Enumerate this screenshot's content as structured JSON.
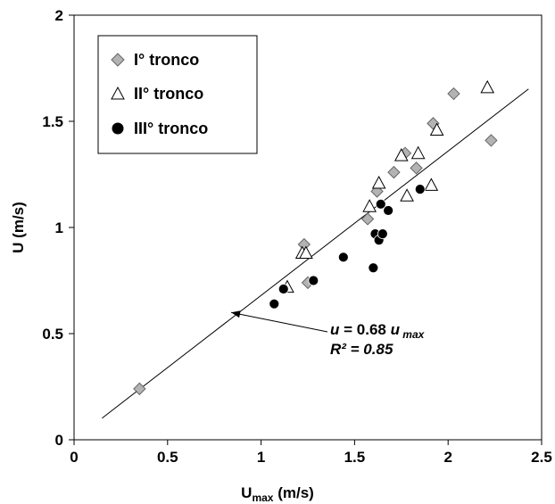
{
  "chart_data": {
    "type": "scatter",
    "xlabel_main": "U",
    "xlabel_sub": "max",
    "xlabel_unit": " (m/s)",
    "ylabel": "U (m/s)",
    "xlim": [
      0,
      2.5
    ],
    "ylim": [
      0,
      2
    ],
    "xticks": [
      "0",
      "0.5",
      "1",
      "1.5",
      "2",
      "2.5"
    ],
    "yticks": [
      "0",
      "0.5",
      "1",
      "1.5",
      "2"
    ],
    "grid": false,
    "legend_position": "top-left",
    "series": [
      {
        "name": "I° tronco",
        "marker": "diamond",
        "color": "#b3b3b3",
        "points": [
          [
            0.35,
            0.24
          ],
          [
            1.23,
            0.92
          ],
          [
            1.25,
            0.74
          ],
          [
            1.57,
            1.04
          ],
          [
            1.62,
            1.17
          ],
          [
            1.71,
            1.26
          ],
          [
            1.77,
            1.35
          ],
          [
            1.83,
            1.28
          ],
          [
            1.92,
            1.49
          ],
          [
            2.03,
            1.63
          ],
          [
            2.23,
            1.41
          ]
        ]
      },
      {
        "name": "II° tronco",
        "marker": "triangle",
        "color": "#ffffff",
        "points": [
          [
            1.14,
            0.72
          ],
          [
            1.22,
            0.88
          ],
          [
            1.24,
            0.88
          ],
          [
            1.58,
            1.1
          ],
          [
            1.63,
            1.21
          ],
          [
            1.75,
            1.34
          ],
          [
            1.78,
            1.15
          ],
          [
            1.84,
            1.35
          ],
          [
            1.91,
            1.2
          ],
          [
            1.94,
            1.46
          ],
          [
            2.21,
            1.66
          ]
        ]
      },
      {
        "name": "III° tronco",
        "marker": "circle",
        "color": "#000000",
        "points": [
          [
            1.07,
            0.64
          ],
          [
            1.12,
            0.71
          ],
          [
            1.28,
            0.75
          ],
          [
            1.44,
            0.86
          ],
          [
            1.6,
            0.81
          ],
          [
            1.61,
            0.97
          ],
          [
            1.63,
            0.94
          ],
          [
            1.64,
            1.11
          ],
          [
            1.65,
            0.97
          ],
          [
            1.68,
            1.08
          ],
          [
            1.85,
            1.18
          ]
        ]
      }
    ],
    "fit_line": {
      "slope": 0.68,
      "x_range": [
        0.15,
        2.43
      ]
    },
    "annotation": {
      "equation_var": "u",
      "equation_mid": " = 0.68 ",
      "equation_var2": "u",
      "equation_sub": " max",
      "r2": "R² = 0.85",
      "arrow_target": [
        0.84,
        0.6
      ]
    }
  }
}
